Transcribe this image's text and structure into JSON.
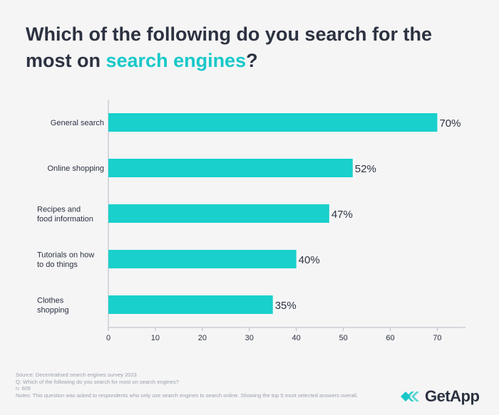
{
  "title": {
    "line1": "Which of the following do you search for the",
    "line2_prefix": "most on ",
    "line2_accent": "search engines",
    "line2_suffix": "?"
  },
  "chart_data": {
    "type": "bar",
    "orientation": "horizontal",
    "categories": [
      [
        "General search"
      ],
      [
        "Online shopping"
      ],
      [
        "Recipes and",
        "food information"
      ],
      [
        "Tutorials on how",
        "to do things"
      ],
      [
        "Clothes",
        "shopping"
      ]
    ],
    "values": [
      70,
      52,
      47,
      40,
      35
    ],
    "value_labels": [
      "70%",
      "52%",
      "47%",
      "40%",
      "35%"
    ],
    "xlim": [
      0,
      76
    ],
    "xticks": [
      0,
      10,
      20,
      30,
      40,
      50,
      60,
      70
    ],
    "grid": false,
    "bar_color": "#19d0cc"
  },
  "footer": {
    "source": "Source: Decentralised search engines survey 2023",
    "question": "Q: Which of the following do you search for most on search engines?",
    "n": "n: 609",
    "notes": "Notes: This question was asked to respondents who only use search engines to search online. Showing the top 5 most selected answers overall."
  },
  "logo": {
    "text": "GetApp",
    "color": "#19c8c8"
  }
}
